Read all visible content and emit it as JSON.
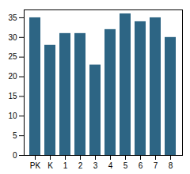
{
  "chart_data": {
    "type": "bar",
    "categories": [
      "PK",
      "K",
      "1",
      "2",
      "3",
      "4",
      "5",
      "6",
      "7",
      "8"
    ],
    "values": [
      35,
      28,
      31,
      31,
      23,
      32,
      36,
      34,
      35,
      30
    ],
    "color": "#2d6584",
    "ylim": [
      0,
      37
    ],
    "yticks": [
      0,
      5,
      10,
      15,
      20,
      25,
      30,
      35
    ],
    "grid": false
  }
}
